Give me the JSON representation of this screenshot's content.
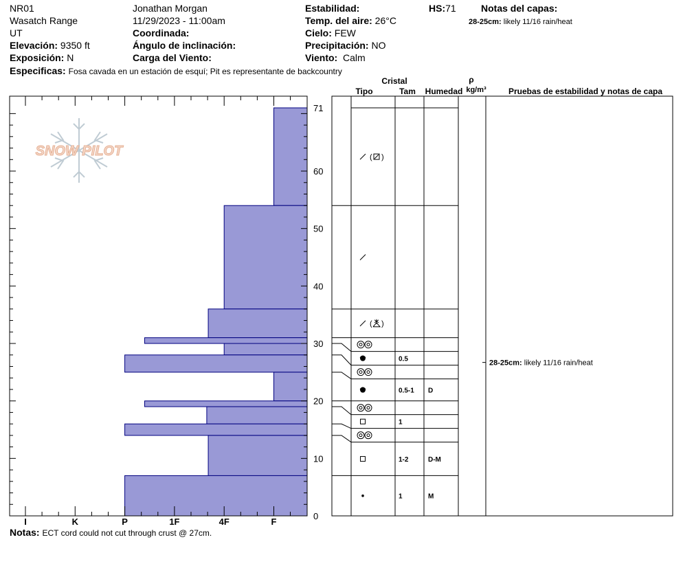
{
  "header": {
    "site_id": "NR01",
    "range": "Wasatch Range",
    "state": "UT",
    "elevation_label": "Elevación:",
    "elevation_value": "9350 ft",
    "aspect_label": "Exposición:",
    "aspect_value": "N",
    "specifics_label": "Especificas:",
    "specifics_value": "Fosa cavada en un estación de esquí; Pit es representante de backcountry",
    "observer": "Jonathan Morgan",
    "datetime": "11/29/2023 - 11:00am",
    "coord_label": "Coordinada:",
    "slope_label": "Ángulo de inclinación:",
    "windload_label": "Carga del Viento:",
    "stability_label": "Estabilidad:",
    "airtemp_label": "Temp. del aire:",
    "airtemp_value": "26°C",
    "sky_label": "Cielo:",
    "sky_value": "FEW",
    "precip_label": "Precipitación:",
    "precip_value": "NO",
    "wind_label": "Viento:",
    "wind_value": "Calm",
    "hs_label": "HS:",
    "hs_value": "71",
    "layer_notes_title": "Notas del capas:",
    "layer_note_key": "28-25cm:",
    "layer_note_value": "likely 11/16 rain/heat"
  },
  "notes": {
    "label": "Notas:",
    "value": "ECT cord could not cut through crust @ 27cm."
  },
  "watermark": {
    "text": "SNOW PILOT"
  },
  "table_headers": {
    "crystal": "Cristal",
    "type": "Tipo",
    "size": "Tam",
    "moisture": "Humedad",
    "rho": "ρ",
    "density_unit": "kg/m³",
    "tests": "Pruebas de estabilidad y notas de capa"
  },
  "colors": {
    "fill": "#9999d6",
    "stroke": "#00007f",
    "grid": "#000000"
  },
  "chart_data": {
    "type": "bar",
    "title": "",
    "xlabel": "",
    "ylabel": "",
    "ylim": [
      0,
      73
    ],
    "y_ticks": [
      0,
      10,
      20,
      30,
      40,
      50,
      60,
      71
    ],
    "hardness_scale": [
      "I",
      "K",
      "P",
      "1F",
      "4F",
      "F"
    ],
    "layers": [
      {
        "top": 71,
        "bottom": 54,
        "hardness": "F",
        "crystal": "slash-box",
        "size": "",
        "moisture": ""
      },
      {
        "top": 54,
        "bottom": 36,
        "hardness": "4F",
        "crystal": "slash",
        "size": "",
        "moisture": ""
      },
      {
        "top": 36,
        "bottom": 31,
        "hardness": "4F+",
        "crystal": "slash-star",
        "size": "",
        "moisture": ""
      },
      {
        "top": 31,
        "bottom": 30,
        "hardness": "1F-",
        "crystal": "melt-clusters",
        "size": "",
        "moisture": ""
      },
      {
        "top": 30,
        "bottom": 28,
        "hardness": "4F",
        "crystal": "melt-freeze",
        "size": "0.5",
        "moisture": ""
      },
      {
        "top": 28,
        "bottom": 25,
        "hardness": "P",
        "crystal": "melt-clusters",
        "size": "",
        "moisture": ""
      },
      {
        "top": 25,
        "bottom": 20,
        "hardness": "F",
        "crystal": "melt-freeze",
        "size": "0.5-1",
        "moisture": "D"
      },
      {
        "top": 20,
        "bottom": 19,
        "hardness": "1F-",
        "crystal": "melt-clusters",
        "size": "",
        "moisture": ""
      },
      {
        "top": 19,
        "bottom": 16,
        "hardness": "4F-",
        "crystal": "square",
        "size": "1",
        "moisture": ""
      },
      {
        "top": 16,
        "bottom": 14,
        "hardness": "P",
        "crystal": "melt-clusters",
        "size": "",
        "moisture": ""
      },
      {
        "top": 14,
        "bottom": 7,
        "hardness": "4F+",
        "crystal": "square",
        "size": "1-2",
        "moisture": "D-M"
      },
      {
        "top": 7,
        "bottom": 0,
        "hardness": "P",
        "crystal": "dot",
        "size": "1",
        "moisture": "M"
      }
    ],
    "hardness_position": {
      "I": 0,
      "K": 1,
      "P": 2,
      "1F-": 2.4,
      "1F": 3,
      "1F+": 3.3,
      "4F-": 3.65,
      "4F": 4,
      "4F+": 3.68,
      "F": 5
    },
    "layer_test_note": {
      "depth": 26.7,
      "key": "28-25cm:",
      "value": "likely 11/16 rain/heat"
    }
  }
}
